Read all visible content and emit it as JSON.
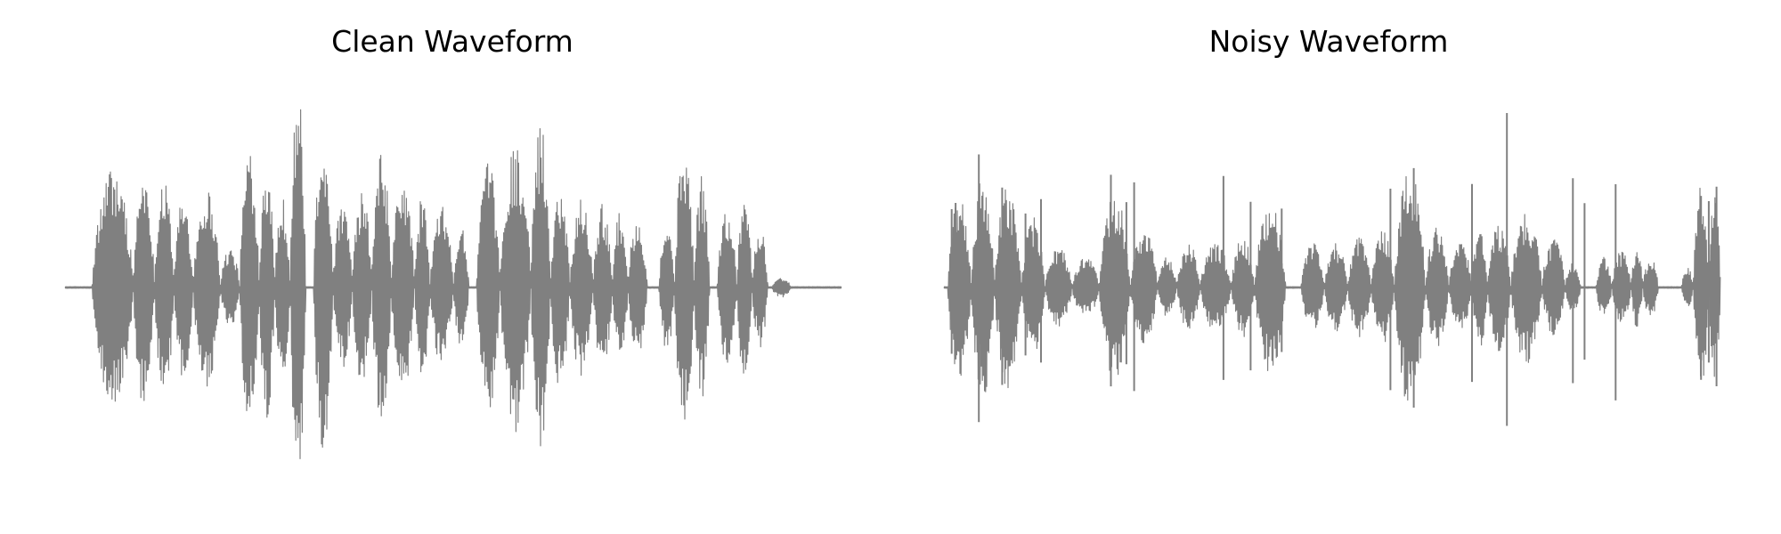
{
  "chart_data": [
    {
      "type": "line",
      "title": "Clean Waveform",
      "axes": "hidden",
      "series": [
        {
          "color": "#808080",
          "bursts": [
            {
              "start": 0.035,
              "end": 0.088,
              "amp": 0.6
            },
            {
              "start": 0.088,
              "end": 0.115,
              "amp": 0.6
            },
            {
              "start": 0.115,
              "end": 0.14,
              "amp": 0.58
            },
            {
              "start": 0.14,
              "end": 0.165,
              "amp": 0.45
            },
            {
              "start": 0.165,
              "end": 0.2,
              "amp": 0.5
            },
            {
              "start": 0.2,
              "end": 0.225,
              "amp": 0.2
            },
            {
              "start": 0.225,
              "end": 0.25,
              "amp": 0.7
            },
            {
              "start": 0.25,
              "end": 0.27,
              "amp": 0.65
            },
            {
              "start": 0.27,
              "end": 0.29,
              "amp": 0.45
            },
            {
              "start": 0.29,
              "end": 0.31,
              "amp": 1.0
            },
            {
              "start": 0.32,
              "end": 0.345,
              "amp": 0.8
            },
            {
              "start": 0.345,
              "end": 0.37,
              "amp": 0.42
            },
            {
              "start": 0.37,
              "end": 0.395,
              "amp": 0.48
            },
            {
              "start": 0.395,
              "end": 0.42,
              "amp": 0.7
            },
            {
              "start": 0.42,
              "end": 0.45,
              "amp": 0.55
            },
            {
              "start": 0.45,
              "end": 0.47,
              "amp": 0.45
            },
            {
              "start": 0.47,
              "end": 0.5,
              "amp": 0.4
            },
            {
              "start": 0.5,
              "end": 0.52,
              "amp": 0.3
            },
            {
              "start": 0.53,
              "end": 0.56,
              "amp": 0.62
            },
            {
              "start": 0.56,
              "end": 0.6,
              "amp": 0.72
            },
            {
              "start": 0.6,
              "end": 0.625,
              "amp": 0.82
            },
            {
              "start": 0.625,
              "end": 0.65,
              "amp": 0.5
            },
            {
              "start": 0.65,
              "end": 0.68,
              "amp": 0.45
            },
            {
              "start": 0.68,
              "end": 0.705,
              "amp": 0.42
            },
            {
              "start": 0.705,
              "end": 0.725,
              "amp": 0.38
            },
            {
              "start": 0.725,
              "end": 0.75,
              "amp": 0.35
            },
            {
              "start": 0.765,
              "end": 0.785,
              "amp": 0.32
            },
            {
              "start": 0.785,
              "end": 0.81,
              "amp": 0.72
            },
            {
              "start": 0.81,
              "end": 0.83,
              "amp": 0.55
            },
            {
              "start": 0.84,
              "end": 0.865,
              "amp": 0.4
            },
            {
              "start": 0.865,
              "end": 0.885,
              "amp": 0.47
            },
            {
              "start": 0.885,
              "end": 0.905,
              "amp": 0.3
            },
            {
              "start": 0.91,
              "end": 0.935,
              "amp": 0.05
            }
          ]
        }
      ]
    },
    {
      "type": "line",
      "title": "Noisy Waveform",
      "axes": "hidden",
      "series": [
        {
          "color": "#808080",
          "bursts": [
            {
              "start": 0.005,
              "end": 0.035,
              "amp": 0.45
            },
            {
              "start": 0.035,
              "end": 0.065,
              "amp": 0.55
            },
            {
              "start": 0.065,
              "end": 0.1,
              "amp": 0.5
            },
            {
              "start": 0.1,
              "end": 0.13,
              "amp": 0.35
            },
            {
              "start": 0.13,
              "end": 0.165,
              "amp": 0.2
            },
            {
              "start": 0.165,
              "end": 0.2,
              "amp": 0.15
            },
            {
              "start": 0.2,
              "end": 0.24,
              "amp": 0.48
            },
            {
              "start": 0.24,
              "end": 0.275,
              "amp": 0.3
            },
            {
              "start": 0.275,
              "end": 0.3,
              "amp": 0.15
            },
            {
              "start": 0.3,
              "end": 0.33,
              "amp": 0.22
            },
            {
              "start": 0.33,
              "end": 0.37,
              "amp": 0.22
            },
            {
              "start": 0.37,
              "end": 0.4,
              "amp": 0.25
            },
            {
              "start": 0.4,
              "end": 0.44,
              "amp": 0.42
            },
            {
              "start": 0.46,
              "end": 0.49,
              "amp": 0.22
            },
            {
              "start": 0.49,
              "end": 0.52,
              "amp": 0.22
            },
            {
              "start": 0.52,
              "end": 0.55,
              "amp": 0.25
            },
            {
              "start": 0.55,
              "end": 0.58,
              "amp": 0.28
            },
            {
              "start": 0.58,
              "end": 0.62,
              "amp": 0.6
            },
            {
              "start": 0.62,
              "end": 0.65,
              "amp": 0.3
            },
            {
              "start": 0.65,
              "end": 0.68,
              "amp": 0.22
            },
            {
              "start": 0.68,
              "end": 0.7,
              "amp": 0.32
            },
            {
              "start": 0.7,
              "end": 0.73,
              "amp": 0.32
            },
            {
              "start": 0.73,
              "end": 0.77,
              "amp": 0.38
            },
            {
              "start": 0.77,
              "end": 0.8,
              "amp": 0.25
            },
            {
              "start": 0.8,
              "end": 0.82,
              "amp": 0.12
            },
            {
              "start": 0.84,
              "end": 0.86,
              "amp": 0.15
            },
            {
              "start": 0.86,
              "end": 0.885,
              "amp": 0.18
            },
            {
              "start": 0.885,
              "end": 0.9,
              "amp": 0.2
            },
            {
              "start": 0.9,
              "end": 0.92,
              "amp": 0.15
            },
            {
              "start": 0.95,
              "end": 0.965,
              "amp": 0.1
            },
            {
              "start": 0.965,
              "end": 0.985,
              "amp": 0.5
            },
            {
              "start": 0.985,
              "end": 1.0,
              "amp": 0.45
            }
          ],
          "spikes": [
            {
              "x": 0.01,
              "amp": 0.45
            },
            {
              "x": 0.015,
              "amp": 0.42
            },
            {
              "x": 0.045,
              "amp": 0.68
            },
            {
              "x": 0.075,
              "amp": 0.55
            },
            {
              "x": 0.105,
              "amp": 0.42
            },
            {
              "x": 0.125,
              "amp": 0.45
            },
            {
              "x": 0.215,
              "amp": 0.65
            },
            {
              "x": 0.235,
              "amp": 0.45
            },
            {
              "x": 0.245,
              "amp": 0.6
            },
            {
              "x": 0.36,
              "amp": 0.62
            },
            {
              "x": 0.395,
              "amp": 0.45
            },
            {
              "x": 0.435,
              "amp": 0.42
            },
            {
              "x": 0.575,
              "amp": 0.55
            },
            {
              "x": 0.605,
              "amp": 0.6
            },
            {
              "x": 0.68,
              "amp": 0.55
            },
            {
              "x": 0.725,
              "amp": 0.9
            },
            {
              "x": 0.81,
              "amp": 0.55
            },
            {
              "x": 0.825,
              "amp": 0.45
            },
            {
              "x": 0.865,
              "amp": 0.6
            },
            {
              "x": 0.975,
              "amp": 0.5
            },
            {
              "x": 0.985,
              "amp": 0.5
            },
            {
              "x": 0.995,
              "amp": 0.5
            }
          ]
        }
      ]
    }
  ]
}
